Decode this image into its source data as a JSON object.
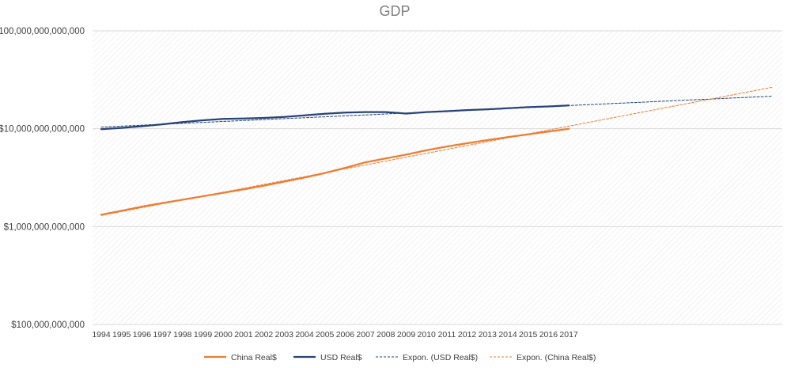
{
  "chart_data": {
    "type": "line",
    "title": "GDP",
    "y_scale": "log",
    "ylim": [
      100000000000,
      100000000000000
    ],
    "y_ticks": [
      100000000000,
      1000000000000,
      10000000000000,
      100000000000000
    ],
    "y_tick_labels": [
      "$100,000,000,000",
      "$1,000,000,000,000",
      "$10,000,000,000,000",
      "$100,000,000,000,000"
    ],
    "x_tick_labels": [
      "1994",
      "1995",
      "1996",
      "1997",
      "1998",
      "1999",
      "2000",
      "2001",
      "2002",
      "2003",
      "2004",
      "2005",
      "2006",
      "2007",
      "2008",
      "2009",
      "2010",
      "2011",
      "2012",
      "2013",
      "2014",
      "2015",
      "2016",
      "2017"
    ],
    "x_range": [
      1994,
      2027
    ],
    "series": [
      {
        "name": "China Real$",
        "color": "#ED7D31",
        "style": "solid",
        "x": [
          1994,
          1995,
          1996,
          1997,
          1998,
          1999,
          2000,
          2001,
          2002,
          2003,
          2004,
          2005,
          2006,
          2007,
          2008,
          2009,
          2010,
          2011,
          2012,
          2013,
          2014,
          2015,
          2016,
          2017
        ],
        "values": [
          1320000000000,
          1450000000000,
          1600000000000,
          1740000000000,
          1880000000000,
          2040000000000,
          2210000000000,
          2400000000000,
          2620000000000,
          2880000000000,
          3170000000000,
          3530000000000,
          3980000000000,
          4540000000000,
          4980000000000,
          5440000000000,
          6020000000000,
          6590000000000,
          7110000000000,
          7660000000000,
          8210000000000,
          8780000000000,
          9370000000000,
          9990000000000
        ]
      },
      {
        "name": "USD Real$",
        "color": "#264478",
        "style": "solid",
        "x": [
          1994,
          1995,
          1996,
          1997,
          1998,
          1999,
          2000,
          2001,
          2002,
          2003,
          2004,
          2005,
          2006,
          2007,
          2008,
          2009,
          2010,
          2011,
          2012,
          2013,
          2014,
          2015,
          2016,
          2017
        ],
        "values": [
          9900000000000,
          10200000000000,
          10600000000000,
          11100000000000,
          11700000000000,
          12200000000000,
          12600000000000,
          12700000000000,
          12900000000000,
          13200000000000,
          13700000000000,
          14200000000000,
          14600000000000,
          14800000000000,
          14800000000000,
          14300000000000,
          14800000000000,
          15100000000000,
          15500000000000,
          15800000000000,
          16200000000000,
          16600000000000,
          16900000000000,
          17300000000000
        ]
      },
      {
        "name": "Expon. (USD Real$)",
        "color": "#264478",
        "style": "dashed",
        "x": [
          1994,
          2027
        ],
        "values": [
          10400000000000,
          21500000000000
        ]
      },
      {
        "name": "Expon. (China Real$)",
        "color": "#ED7D31",
        "style": "dashed",
        "x": [
          1994,
          2027
        ],
        "values": [
          1300000000000,
          26500000000000
        ]
      }
    ],
    "legend_position": "bottom",
    "grid": true
  }
}
